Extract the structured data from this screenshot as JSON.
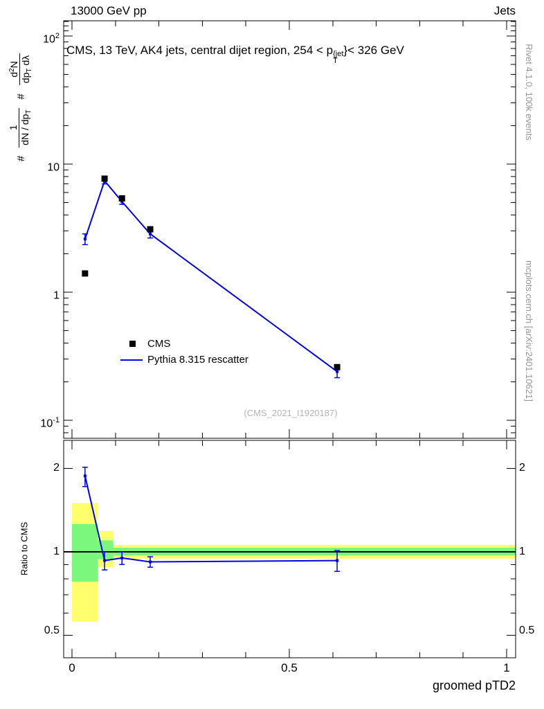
{
  "header": {
    "left": "13000 GeV pp",
    "right": "Jets"
  },
  "title": {
    "pre": "CMS, 13 TeV, AK4 jets, central dijet region, 254 < p",
    "sup": "{jet",
    "sub": "T",
    "post": "}< 326 GeV"
  },
  "ylabel": {
    "hash1": "#",
    "frac1": {
      "num": "1",
      "den_pre": "dN / dp",
      "den_sub": "T"
    },
    "hash2": "#",
    "frac2": {
      "num_pre": "d",
      "num_sup": "2",
      "num_post": "N",
      "den_pre": "dp",
      "den_sub": "T",
      "den_post": " dλ"
    }
  },
  "ratio_ylabel": "Ratio to CMS",
  "xlabel": "groomed pTD2",
  "watermark": "(CMS_2021_I1920187)",
  "side_notes": {
    "top": "Rivet 4.1.0,  100k events",
    "bottom": "mcplots.cern.ch [arXiv:2401.10621]"
  },
  "legend": [
    {
      "label": "CMS",
      "marker": "black-square"
    },
    {
      "label": "Pythia 8.315 rescatter",
      "marker": "blue-line"
    }
  ],
  "colors": {
    "cms": "#000000",
    "pythia": "#0000ee",
    "band_yellow": "#ffff6e",
    "band_green": "#7bf77b",
    "gray_text": "#969696",
    "watermark": "#b4b4b4"
  },
  "axis_labels": {
    "y_main": [
      {
        "base": "10",
        "sup": "2"
      },
      {
        "base": "10",
        "sup": ""
      },
      {
        "base": "1",
        "sup": ""
      },
      {
        "base": "10",
        "sup": "-1"
      }
    ],
    "y_ratio": [
      "2",
      "1",
      "0.5"
    ],
    "x": [
      "0",
      "0.5",
      "1"
    ]
  },
  "chart_data": {
    "type": "line",
    "title": "CMS, 13 TeV, AK4 jets, central dijet region, 254 < pT^{jet} < 326 GeV",
    "xlabel": "groomed pTD2",
    "x_range": [
      0,
      1
    ],
    "y_scale": "log",
    "y_range_main": [
      0.073,
      131
    ],
    "legend_position": "left-middle",
    "x": [
      0.03,
      0.075,
      0.115,
      0.18,
      0.61
    ],
    "series": [
      {
        "name": "CMS",
        "type": "scatter",
        "marker": "square",
        "color": "#000000",
        "y": [
          1.4,
          7.7,
          5.4,
          3.1,
          0.26
        ]
      },
      {
        "name": "Pythia 8.315 rescatter",
        "type": "line",
        "color": "#0000ee",
        "y": [
          2.6,
          7.4,
          5.1,
          2.85,
          0.24
        ],
        "y_err_lo": [
          2.35,
          7.0,
          4.85,
          2.65,
          0.215
        ],
        "y_err_hi": [
          2.85,
          7.8,
          5.4,
          3.05,
          0.265
        ]
      }
    ],
    "ratio": {
      "label": "Ratio to CMS",
      "y_scale": "log",
      "y_range": [
        0.42,
        2.5
      ],
      "y": [
        1.88,
        0.93,
        0.95,
        0.92,
        0.93
      ],
      "y_err_lo": [
        1.72,
        0.86,
        0.9,
        0.88,
        0.85
      ],
      "y_err_hi": [
        2.02,
        1.0,
        1.0,
        0.96,
        1.01
      ],
      "unity_line": 1,
      "bands": {
        "yellow": [
          {
            "x0": 0,
            "x1": 0.059,
            "lo": 0.56,
            "hi": 1.5
          },
          {
            "x0": 0.059,
            "x1": 0.094,
            "lo": 0.88,
            "hi": 1.19
          },
          {
            "x0": 0.094,
            "x1": 1.021,
            "lo": 0.945,
            "hi": 1.06
          }
        ],
        "green": [
          {
            "x0": 0,
            "x1": 0.059,
            "lo": 0.78,
            "hi": 1.26
          },
          {
            "x0": 0.059,
            "x1": 0.094,
            "lo": 0.94,
            "hi": 1.1
          },
          {
            "x0": 0.094,
            "x1": 1.021,
            "lo": 0.97,
            "hi": 1.035
          }
        ]
      }
    }
  }
}
